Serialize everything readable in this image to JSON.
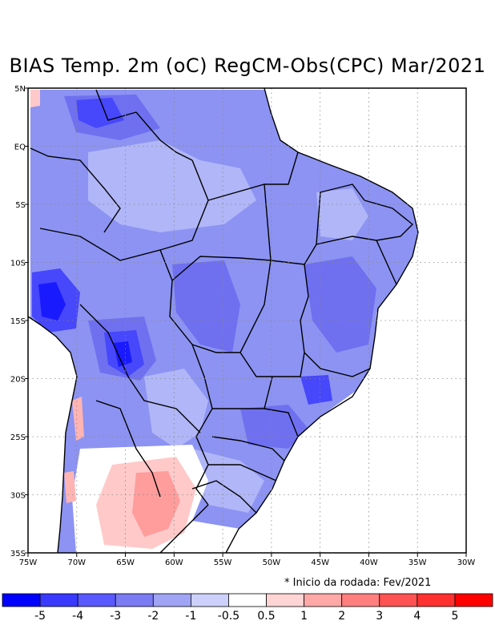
{
  "title": "BIAS Temp. 2m (oC) RegCM-Obs(CPC) Mar/2021",
  "note": "* Inicio da rodada: Fev/2021",
  "map": {
    "lon_ticks": [
      "75W",
      "70W",
      "65W",
      "60W",
      "55W",
      "50W",
      "45W",
      "40W",
      "35W",
      "30W"
    ],
    "lat_ticks": [
      "5N",
      "EQ",
      "5S",
      "10S",
      "15S",
      "20S",
      "25S",
      "30S",
      "35S"
    ],
    "extent": {
      "lon_min": -75,
      "lon_max": -30,
      "lat_min": -35,
      "lat_max": 5
    }
  },
  "colorbar": {
    "colors": [
      "#0000ff",
      "#3a3aff",
      "#5959ff",
      "#7b7bf4",
      "#a0a4f5",
      "#cdd0fa",
      "#ffffff",
      "#ffd4d4",
      "#ffa8a8",
      "#ff7e7e",
      "#ff5252",
      "#ff3030",
      "#ff0000"
    ],
    "labels": [
      "-5",
      "-4",
      "-3",
      "-2",
      "-1",
      "-0.5",
      "0.5",
      "1",
      "2",
      "3",
      "4",
      "5"
    ]
  }
}
